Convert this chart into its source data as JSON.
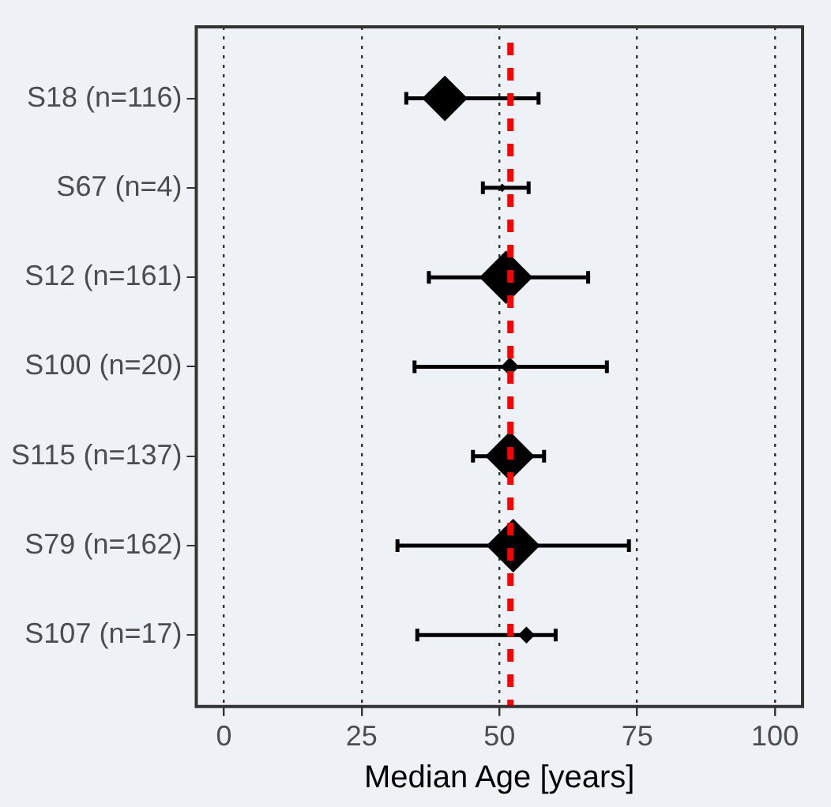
{
  "chart_data": {
    "type": "bubble",
    "orientation": "horizontal",
    "categories": [
      "S18 (n=116)",
      "S67 (n=4)",
      "S12 (n=161)",
      "S100 (n=20)",
      "S115 (n=137)",
      "S79 (n=162)",
      "S107 (n=17)"
    ],
    "values": [
      40.1,
      50.5,
      51.2,
      51.9,
      51.9,
      52.5,
      54.9
    ],
    "sizes": [
      0.72,
      0.025,
      0.99,
      0.12,
      0.85,
      1,
      0.1
    ],
    "errors": [
      [
        33.1,
        57.1
      ],
      [
        47.0,
        55.3
      ],
      [
        37.2,
        66.1
      ],
      [
        34.6,
        69.5
      ],
      [
        45.2,
        58.1
      ],
      [
        31.5,
        73.5
      ],
      [
        35.1,
        60.2
      ]
    ],
    "color": "#000000",
    "marker": "diamond",
    "xlabel": "Median Age [years]",
    "xlim": [
      -5,
      105
    ],
    "xticks": [
      0,
      25,
      50,
      75,
      100
    ],
    "grid": "x",
    "legend": false,
    "ref_lines": [
      {
        "axis": "x",
        "value": 52,
        "color": "#ff0000",
        "line_style": "dashed"
      }
    ]
  }
}
